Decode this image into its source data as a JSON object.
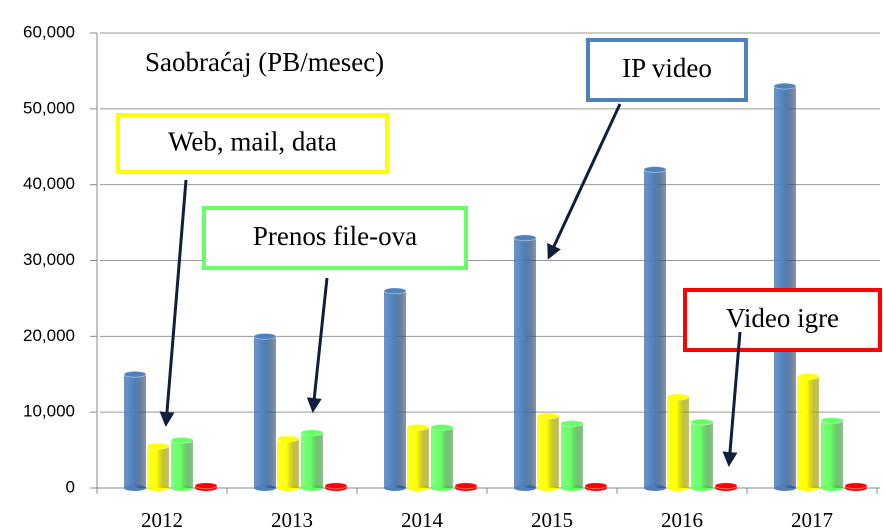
{
  "chart_data": {
    "type": "bar",
    "title": "Saobraćaj (PB/mesec)",
    "categories": [
      "2012",
      "2013",
      "2014",
      "2015",
      "2016",
      "2017"
    ],
    "series": [
      {
        "name": "IP video",
        "color": "#4f81bd",
        "values": [
          15000,
          20000,
          26000,
          33000,
          42000,
          53000
        ]
      },
      {
        "name": "Web, mail, data",
        "color": "#ffff00",
        "values": [
          5500,
          6500,
          8000,
          9500,
          12000,
          14700
        ]
      },
      {
        "name": "Prenos file-ova",
        "color": "#66ff66",
        "values": [
          6300,
          7300,
          8000,
          8500,
          8700,
          8900
        ]
      },
      {
        "name": "Video igre",
        "color": "#ff0000",
        "values": [
          300,
          300,
          300,
          300,
          300,
          300
        ]
      }
    ],
    "ylim": [
      0,
      60000
    ],
    "yticks": [
      0,
      {
        "value": 10000,
        "label": "10,000"
      },
      {
        "value": 20000,
        "label": "20,000"
      },
      {
        "value": 30000,
        "label": "30,000"
      },
      {
        "value": 40000,
        "label": "40,000"
      },
      {
        "value": 50000,
        "label": "50,000"
      },
      {
        "value": 60000,
        "label": "60,000"
      }
    ],
    "grid": true
  }
}
